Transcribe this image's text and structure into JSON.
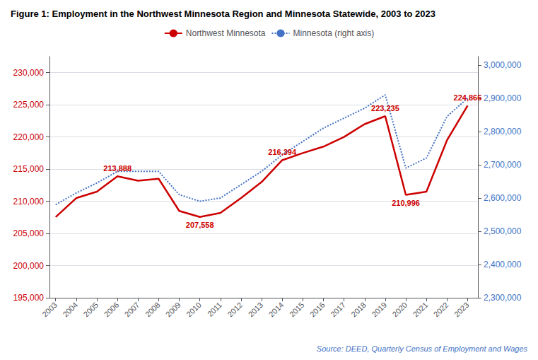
{
  "chart_data": {
    "type": "line",
    "title": "Figure 1: Employment in the Northwest Minnesota Region and Minnesota Statewide, 2003 to 2023",
    "source": "Source: DEED, Quarterly Census of Employment and Wages",
    "x": [
      2003,
      2004,
      2005,
      2006,
      2007,
      2008,
      2009,
      2010,
      2011,
      2012,
      2013,
      2014,
      2015,
      2016,
      2017,
      2018,
      2019,
      2020,
      2021,
      2022,
      2023
    ],
    "xlim": [
      2002.7,
      2023.5
    ],
    "xticks": [
      2003,
      2004,
      2005,
      2006,
      2007,
      2008,
      2009,
      2010,
      2011,
      2012,
      2013,
      2014,
      2015,
      2016,
      2017,
      2018,
      2019,
      2020,
      2021,
      2022,
      2023
    ],
    "ylim": [
      195000,
      232500
    ],
    "yticks": [
      {
        "value": 195000,
        "label": "195,000"
      },
      {
        "value": 200000,
        "label": "200,000"
      },
      {
        "value": 205000,
        "label": "205,000"
      },
      {
        "value": 210000,
        "label": "210,000"
      },
      {
        "value": 215000,
        "label": "215,000"
      },
      {
        "value": 220000,
        "label": "220,000"
      },
      {
        "value": 225000,
        "label": "225,000"
      },
      {
        "value": 230000,
        "label": "230,000"
      }
    ],
    "y2lim": [
      2300000,
      3025000
    ],
    "y2ticks": [
      {
        "value": 2300000,
        "label": "2,300,000"
      },
      {
        "value": 2400000,
        "label": "2,400,000"
      },
      {
        "value": 2500000,
        "label": "2,500,000"
      },
      {
        "value": 2600000,
        "label": "2,600,000"
      },
      {
        "value": 2700000,
        "label": "2,700,000"
      },
      {
        "value": 2800000,
        "label": "2,800,000"
      },
      {
        "value": 2900000,
        "label": "2,900,000"
      },
      {
        "value": 3000000,
        "label": "3,000,000"
      }
    ],
    "grid": true,
    "legend": "top",
    "series": [
      {
        "name": "Northwest Minnesota",
        "color": "#cc0000",
        "line_style": "solid",
        "values": [
          207558,
          210500,
          211500,
          213888,
          213200,
          213500,
          208500,
          207558,
          208200,
          210500,
          213000,
          216394,
          217500,
          218500,
          220000,
          222000,
          223235,
          210996,
          211500,
          219500,
          224866
        ]
      },
      {
        "name": "Minnesota (right axis)",
        "color": "#4472c4",
        "line_style": "dotted",
        "axis": "y2",
        "values": [
          2580000,
          2615000,
          2645000,
          2680000,
          2680000,
          2680000,
          2610000,
          2590000,
          2600000,
          2640000,
          2680000,
          2730000,
          2770000,
          2810000,
          2840000,
          2870000,
          2910000,
          2690000,
          2720000,
          2845000,
          2900000
        ]
      }
    ],
    "annotations": [
      {
        "label": "213,888",
        "x": 2006,
        "y": 213888
      },
      {
        "label": "207,558",
        "x": 2010,
        "y": 207558
      },
      {
        "label": "216,394",
        "x": 2014,
        "y": 216394
      },
      {
        "label": "223,235",
        "x": 2019,
        "y": 223235
      },
      {
        "label": "210,996",
        "x": 2020,
        "y": 210996
      },
      {
        "label": "224,866",
        "x": 2023,
        "y": 224866
      }
    ]
  }
}
